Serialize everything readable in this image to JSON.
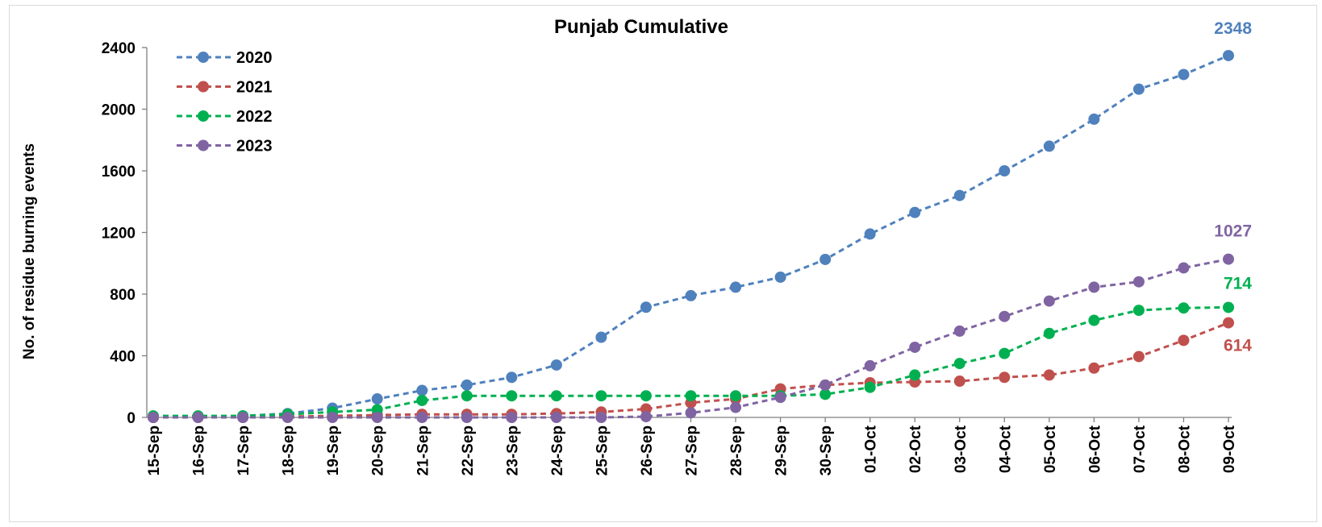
{
  "chart_data": {
    "type": "line",
    "title": "Punjab Cumulative",
    "xlabel": "",
    "ylabel": "No. of residue burning events",
    "ylim": [
      0,
      2400
    ],
    "yticks": [
      0,
      400,
      800,
      1200,
      1600,
      2000,
      2400
    ],
    "grid": false,
    "legend_position": "top-left",
    "categories": [
      "15-Sep",
      "16-Sep",
      "17-Sep",
      "18-Sep",
      "19-Sep",
      "20-Sep",
      "21-Sep",
      "22-Sep",
      "23-Sep",
      "24-Sep",
      "25-Sep",
      "26-Sep",
      "27-Sep",
      "28-Sep",
      "29-Sep",
      "30-Sep",
      "01-Oct",
      "02-Oct",
      "03-Oct",
      "04-Oct",
      "05-Oct",
      "06-Oct",
      "07-Oct",
      "08-Oct",
      "09-Oct"
    ],
    "series": [
      {
        "name": "2020",
        "color": "#4f81bd",
        "end_label": "2348",
        "values": [
          0,
          5,
          10,
          25,
          60,
          120,
          175,
          210,
          260,
          340,
          520,
          715,
          790,
          845,
          910,
          1025,
          1190,
          1330,
          1440,
          1600,
          1760,
          1935,
          2130,
          2225,
          2348
        ]
      },
      {
        "name": "2021",
        "color": "#c0504d",
        "end_label": "614",
        "values": [
          0,
          0,
          0,
          5,
          10,
          15,
          20,
          20,
          20,
          25,
          35,
          55,
          95,
          120,
          185,
          210,
          225,
          230,
          235,
          260,
          275,
          320,
          395,
          500,
          614
        ]
      },
      {
        "name": "2022",
        "color": "#00b050",
        "end_label": "714",
        "values": [
          10,
          10,
          10,
          20,
          35,
          50,
          110,
          140,
          140,
          140,
          140,
          140,
          140,
          140,
          140,
          150,
          195,
          275,
          350,
          415,
          545,
          630,
          695,
          710,
          714
        ]
      },
      {
        "name": "2023",
        "color": "#8064a2",
        "end_label": "1027",
        "values": [
          0,
          0,
          0,
          0,
          0,
          0,
          0,
          0,
          0,
          0,
          0,
          5,
          30,
          65,
          130,
          210,
          335,
          455,
          560,
          655,
          755,
          845,
          880,
          970,
          1027
        ]
      }
    ]
  }
}
